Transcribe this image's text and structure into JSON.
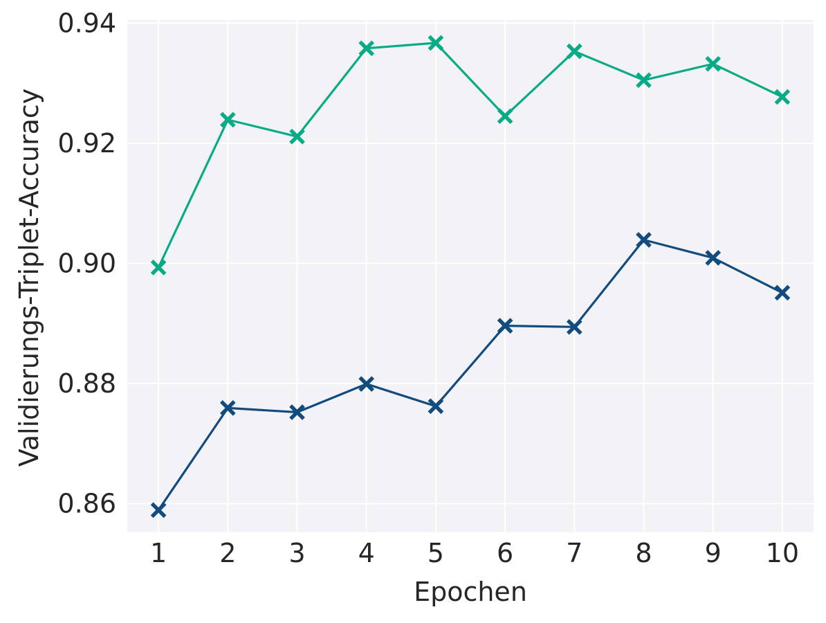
{
  "chart_data": {
    "type": "line",
    "title": "",
    "xlabel": "Epochen",
    "ylabel": "Validierungs-Triplet-Accuracy",
    "x": [
      1,
      2,
      3,
      4,
      5,
      6,
      7,
      8,
      9,
      10
    ],
    "xticks": [
      "1",
      "2",
      "3",
      "4",
      "5",
      "6",
      "7",
      "8",
      "9",
      "10"
    ],
    "yticks": [
      "0.86",
      "0.88",
      "0.90",
      "0.92",
      "0.94"
    ],
    "xlim": [
      0.55,
      10.45
    ],
    "ylim": [
      0.8552,
      0.9405
    ],
    "grid": true,
    "legend": "none",
    "background_color": "#f2f2f7",
    "series": [
      {
        "color": "#09ab86",
        "marker": "X",
        "values": [
          0.8993,
          0.9239,
          0.9211,
          0.9358,
          0.9367,
          0.9245,
          0.9353,
          0.9305,
          0.9332,
          0.9277
        ]
      },
      {
        "color": "#124b7d",
        "marker": "X",
        "values": [
          0.8589,
          0.8759,
          0.8752,
          0.8799,
          0.8762,
          0.8896,
          0.8894,
          0.9039,
          0.9009,
          0.8951
        ]
      }
    ]
  }
}
